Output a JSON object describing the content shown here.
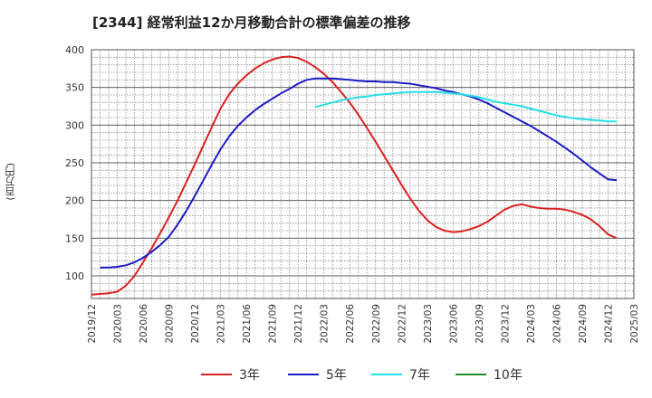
{
  "chart_data": {
    "type": "line",
    "title": "[2344]  経常利益12か月移動合計の標準偏差の推移",
    "ylabel": "(百万円)",
    "xlabel": "",
    "ylim": [
      70,
      400
    ],
    "yticks": [
      100,
      150,
      200,
      250,
      300,
      350,
      400
    ],
    "xlim": [
      "2019-12",
      "2025-03"
    ],
    "xticks": [
      "2019/12",
      "2020/03",
      "2020/06",
      "2020/09",
      "2020/12",
      "2021/03",
      "2021/06",
      "2021/09",
      "2021/12",
      "2022/03",
      "2022/06",
      "2022/09",
      "2022/12",
      "2023/03",
      "2023/06",
      "2023/09",
      "2023/12",
      "2024/03",
      "2024/06",
      "2024/09",
      "2024/12",
      "2025/03"
    ],
    "grid": true,
    "legend_position": "bottom",
    "series": [
      {
        "name": "3年",
        "color": "#dd2222",
        "points": [
          [
            "2019-12",
            75
          ],
          [
            "2020-01",
            76
          ],
          [
            "2020-02",
            77
          ],
          [
            "2020-03",
            79
          ],
          [
            "2020-04",
            87
          ],
          [
            "2020-05",
            100
          ],
          [
            "2020-06",
            118
          ],
          [
            "2020-07",
            137
          ],
          [
            "2020-08",
            157
          ],
          [
            "2020-09",
            178
          ],
          [
            "2020-10",
            200
          ],
          [
            "2020-11",
            224
          ],
          [
            "2020-12",
            248
          ],
          [
            "2021-01",
            273
          ],
          [
            "2021-02",
            298
          ],
          [
            "2021-03",
            322
          ],
          [
            "2021-04",
            341
          ],
          [
            "2021-05",
            355
          ],
          [
            "2021-06",
            366
          ],
          [
            "2021-07",
            375
          ],
          [
            "2021-08",
            382
          ],
          [
            "2021-09",
            387
          ],
          [
            "2021-10",
            390
          ],
          [
            "2021-11",
            391
          ],
          [
            "2021-12",
            389
          ],
          [
            "2022-01",
            384
          ],
          [
            "2022-02",
            377
          ],
          [
            "2022-03",
            368
          ],
          [
            "2022-04",
            357
          ],
          [
            "2022-05",
            344
          ],
          [
            "2022-06",
            330
          ],
          [
            "2022-07",
            314
          ],
          [
            "2022-08",
            296
          ],
          [
            "2022-09",
            278
          ],
          [
            "2022-10",
            259
          ],
          [
            "2022-11",
            240
          ],
          [
            "2022-12",
            221
          ],
          [
            "2023-01",
            203
          ],
          [
            "2023-02",
            187
          ],
          [
            "2023-03",
            174
          ],
          [
            "2023-04",
            165
          ],
          [
            "2023-05",
            160
          ],
          [
            "2023-06",
            158
          ],
          [
            "2023-07",
            159
          ],
          [
            "2023-08",
            162
          ],
          [
            "2023-09",
            166
          ],
          [
            "2023-10",
            172
          ],
          [
            "2023-11",
            180
          ],
          [
            "2023-12",
            188
          ],
          [
            "2024-01",
            193
          ],
          [
            "2024-02",
            195
          ],
          [
            "2024-03",
            192
          ],
          [
            "2024-04",
            190
          ],
          [
            "2024-05",
            189
          ],
          [
            "2024-06",
            189
          ],
          [
            "2024-07",
            188
          ],
          [
            "2024-08",
            185
          ],
          [
            "2024-09",
            181
          ],
          [
            "2024-10",
            175
          ],
          [
            "2024-11",
            166
          ],
          [
            "2024-12",
            155
          ],
          [
            "2025-01",
            150
          ]
        ]
      },
      {
        "name": "5年",
        "color": "#1c1cc8",
        "points": [
          [
            "2020-01",
            111
          ],
          [
            "2020-02",
            111
          ],
          [
            "2020-03",
            112
          ],
          [
            "2020-04",
            114
          ],
          [
            "2020-05",
            118
          ],
          [
            "2020-06",
            124
          ],
          [
            "2020-07",
            132
          ],
          [
            "2020-08",
            141
          ],
          [
            "2020-09",
            152
          ],
          [
            "2020-10",
            168
          ],
          [
            "2020-11",
            186
          ],
          [
            "2020-12",
            206
          ],
          [
            "2021-01",
            227
          ],
          [
            "2021-02",
            248
          ],
          [
            "2021-03",
            268
          ],
          [
            "2021-04",
            285
          ],
          [
            "2021-05",
            299
          ],
          [
            "2021-06",
            310
          ],
          [
            "2021-07",
            320
          ],
          [
            "2021-08",
            328
          ],
          [
            "2021-09",
            335
          ],
          [
            "2021-10",
            342
          ],
          [
            "2021-11",
            348
          ],
          [
            "2021-12",
            355
          ],
          [
            "2022-01",
            360
          ],
          [
            "2022-02",
            362
          ],
          [
            "2022-03",
            362
          ],
          [
            "2022-04",
            362
          ],
          [
            "2022-05",
            361
          ],
          [
            "2022-06",
            360
          ],
          [
            "2022-07",
            359
          ],
          [
            "2022-08",
            358
          ],
          [
            "2022-09",
            358
          ],
          [
            "2022-10",
            357
          ],
          [
            "2022-11",
            357
          ],
          [
            "2022-12",
            356
          ],
          [
            "2023-01",
            355
          ],
          [
            "2023-02",
            353
          ],
          [
            "2023-03",
            351
          ],
          [
            "2023-04",
            349
          ],
          [
            "2023-05",
            346
          ],
          [
            "2023-06",
            344
          ],
          [
            "2023-07",
            341
          ],
          [
            "2023-08",
            338
          ],
          [
            "2023-09",
            334
          ],
          [
            "2023-10",
            329
          ],
          [
            "2023-11",
            323
          ],
          [
            "2023-12",
            317
          ],
          [
            "2024-01",
            311
          ],
          [
            "2024-02",
            305
          ],
          [
            "2024-03",
            299
          ],
          [
            "2024-04",
            292
          ],
          [
            "2024-05",
            285
          ],
          [
            "2024-06",
            278
          ],
          [
            "2024-07",
            270
          ],
          [
            "2024-08",
            262
          ],
          [
            "2024-09",
            253
          ],
          [
            "2024-10",
            244
          ],
          [
            "2024-11",
            236
          ],
          [
            "2024-12",
            228
          ],
          [
            "2025-01",
            227
          ]
        ]
      },
      {
        "name": "7年",
        "color": "#22e0e8",
        "points": [
          [
            "2022-02",
            324
          ],
          [
            "2022-03",
            327
          ],
          [
            "2022-04",
            330
          ],
          [
            "2022-05",
            333
          ],
          [
            "2022-06",
            335
          ],
          [
            "2022-07",
            337
          ],
          [
            "2022-08",
            338
          ],
          [
            "2022-09",
            340
          ],
          [
            "2022-10",
            341
          ],
          [
            "2022-11",
            342
          ],
          [
            "2022-12",
            343
          ],
          [
            "2023-01",
            344
          ],
          [
            "2023-02",
            344
          ],
          [
            "2023-03",
            344
          ],
          [
            "2023-04",
            344
          ],
          [
            "2023-05",
            343
          ],
          [
            "2023-06",
            342
          ],
          [
            "2023-07",
            341
          ],
          [
            "2023-08",
            339
          ],
          [
            "2023-09",
            337
          ],
          [
            "2023-10",
            334
          ],
          [
            "2023-11",
            331
          ],
          [
            "2023-12",
            329
          ],
          [
            "2024-01",
            327
          ],
          [
            "2024-02",
            325
          ],
          [
            "2024-03",
            322
          ],
          [
            "2024-04",
            319
          ],
          [
            "2024-05",
            316
          ],
          [
            "2024-06",
            313
          ],
          [
            "2024-07",
            311
          ],
          [
            "2024-08",
            309
          ],
          [
            "2024-09",
            308
          ],
          [
            "2024-10",
            307
          ],
          [
            "2024-11",
            306
          ],
          [
            "2024-12",
            305
          ],
          [
            "2025-01",
            305
          ]
        ]
      },
      {
        "name": "10年",
        "color": "#228b22",
        "points": []
      }
    ]
  }
}
